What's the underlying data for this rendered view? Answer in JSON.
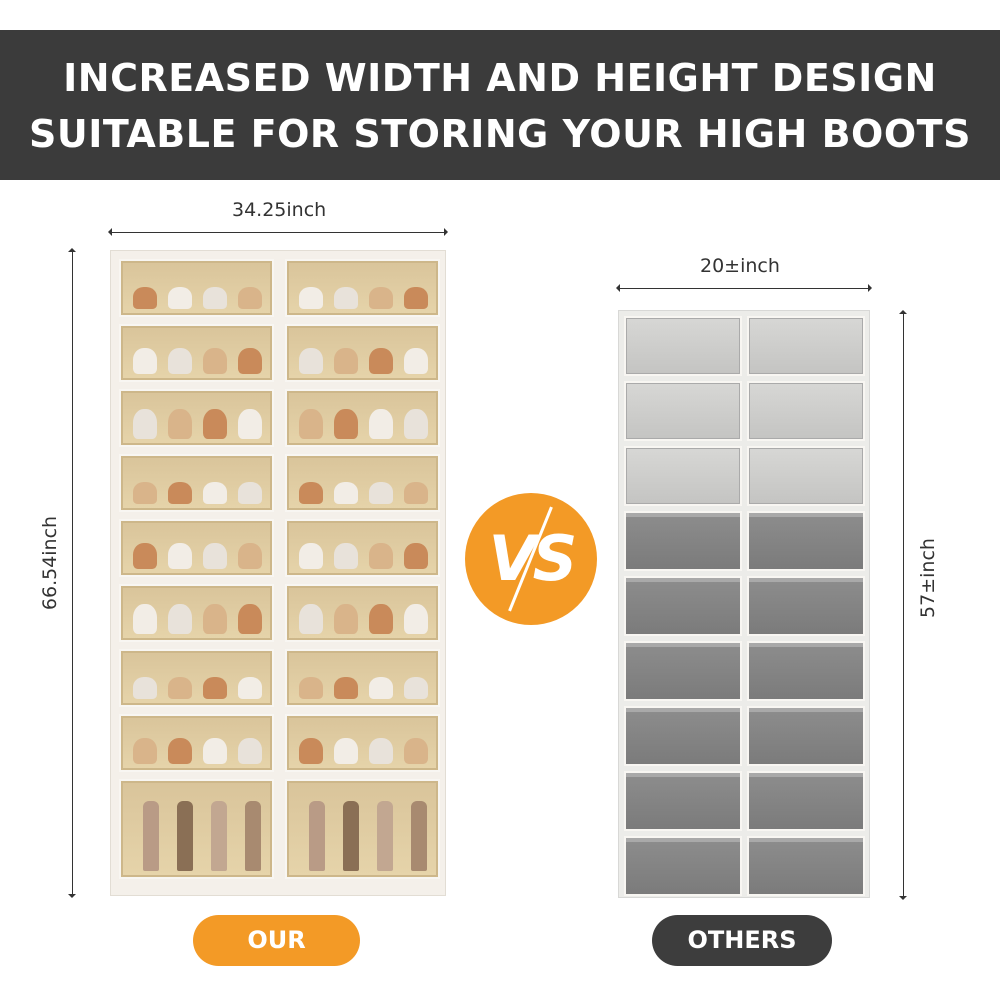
{
  "header": {
    "line1": "INCREASED WIDTH AND HEIGHT DESIGN",
    "line2": "SUITABLE FOR STORING YOUR HIGH BOOTS"
  },
  "ours": {
    "width_label": "34.25inch",
    "height_label": "66.54inch",
    "button_label": "OUR",
    "rows": 9,
    "columns": 2
  },
  "others": {
    "width_label": "20±inch",
    "height_label": "57±inch",
    "button_label": "OTHERS",
    "rows": 9,
    "columns": 2
  },
  "vs_badge": {
    "label": "VS"
  },
  "colors": {
    "header_bg": "#3b3b3b",
    "accent_orange": "#f39a26",
    "others_pill": "#3d3d3d"
  }
}
